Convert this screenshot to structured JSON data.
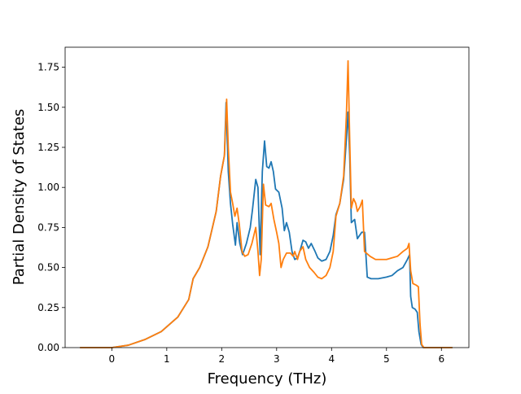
{
  "chart_data": {
    "type": "line",
    "title": "",
    "xlabel": "Frequency (THz)",
    "ylabel": "Partial Density of States",
    "xlim": [
      -0.85,
      6.5
    ],
    "ylim": [
      0,
      1.875
    ],
    "xticks": [
      0,
      1,
      2,
      3,
      4,
      5,
      6
    ],
    "yticks": [
      0.0,
      0.25,
      0.5,
      0.75,
      1.0,
      1.25,
      1.5,
      1.75
    ],
    "ytick_labels": [
      "0.00",
      "0.25",
      "0.50",
      "0.75",
      "1.00",
      "1.25",
      "1.50",
      "1.75"
    ],
    "grid": false,
    "legend": "none",
    "series": [
      {
        "color": "#1f77b4",
        "points": [
          [
            -0.58,
            0.0
          ],
          [
            0.0,
            0.0
          ],
          [
            0.3,
            0.015
          ],
          [
            0.6,
            0.05
          ],
          [
            0.9,
            0.1
          ],
          [
            1.2,
            0.19
          ],
          [
            1.4,
            0.3
          ],
          [
            1.48,
            0.43
          ],
          [
            1.6,
            0.5
          ],
          [
            1.75,
            0.63
          ],
          [
            1.9,
            0.85
          ],
          [
            1.98,
            1.07
          ],
          [
            2.05,
            1.2
          ],
          [
            2.08,
            1.53
          ],
          [
            2.12,
            1.1
          ],
          [
            2.16,
            0.9
          ],
          [
            2.2,
            0.77
          ],
          [
            2.25,
            0.64
          ],
          [
            2.28,
            0.78
          ],
          [
            2.33,
            0.65
          ],
          [
            2.38,
            0.58
          ],
          [
            2.45,
            0.65
          ],
          [
            2.52,
            0.75
          ],
          [
            2.56,
            0.86
          ],
          [
            2.62,
            1.05
          ],
          [
            2.66,
            1.0
          ],
          [
            2.7,
            0.58
          ],
          [
            2.74,
            1.1
          ],
          [
            2.78,
            1.29
          ],
          [
            2.82,
            1.13
          ],
          [
            2.86,
            1.12
          ],
          [
            2.9,
            1.16
          ],
          [
            2.94,
            1.1
          ],
          [
            2.98,
            0.99
          ],
          [
            3.04,
            0.97
          ],
          [
            3.1,
            0.87
          ],
          [
            3.14,
            0.73
          ],
          [
            3.18,
            0.78
          ],
          [
            3.23,
            0.72
          ],
          [
            3.28,
            0.6
          ],
          [
            3.33,
            0.55
          ],
          [
            3.38,
            0.56
          ],
          [
            3.43,
            0.61
          ],
          [
            3.48,
            0.67
          ],
          [
            3.53,
            0.66
          ],
          [
            3.58,
            0.62
          ],
          [
            3.63,
            0.65
          ],
          [
            3.7,
            0.6
          ],
          [
            3.75,
            0.56
          ],
          [
            3.82,
            0.54
          ],
          [
            3.9,
            0.55
          ],
          [
            3.97,
            0.6
          ],
          [
            4.03,
            0.7
          ],
          [
            4.08,
            0.83
          ],
          [
            4.15,
            0.9
          ],
          [
            4.22,
            1.05
          ],
          [
            4.27,
            1.3
          ],
          [
            4.3,
            1.47
          ],
          [
            4.33,
            1.2
          ],
          [
            4.36,
            0.78
          ],
          [
            4.42,
            0.8
          ],
          [
            4.47,
            0.68
          ],
          [
            4.55,
            0.72
          ],
          [
            4.6,
            0.72
          ],
          [
            4.65,
            0.44
          ],
          [
            4.72,
            0.43
          ],
          [
            4.85,
            0.43
          ],
          [
            5.0,
            0.44
          ],
          [
            5.1,
            0.45
          ],
          [
            5.2,
            0.48
          ],
          [
            5.3,
            0.5
          ],
          [
            5.38,
            0.55
          ],
          [
            5.42,
            0.58
          ],
          [
            5.44,
            0.32
          ],
          [
            5.47,
            0.25
          ],
          [
            5.52,
            0.24
          ],
          [
            5.56,
            0.22
          ],
          [
            5.59,
            0.1
          ],
          [
            5.63,
            0.02
          ],
          [
            5.67,
            0.0
          ],
          [
            6.2,
            0.0
          ]
        ]
      },
      {
        "color": "#ff7f0e",
        "points": [
          [
            -0.58,
            0.0
          ],
          [
            0.0,
            0.0
          ],
          [
            0.3,
            0.015
          ],
          [
            0.6,
            0.05
          ],
          [
            0.9,
            0.1
          ],
          [
            1.2,
            0.19
          ],
          [
            1.4,
            0.3
          ],
          [
            1.48,
            0.43
          ],
          [
            1.6,
            0.5
          ],
          [
            1.75,
            0.63
          ],
          [
            1.9,
            0.85
          ],
          [
            1.98,
            1.07
          ],
          [
            2.05,
            1.2
          ],
          [
            2.09,
            1.55
          ],
          [
            2.12,
            1.25
          ],
          [
            2.16,
            0.97
          ],
          [
            2.2,
            0.9
          ],
          [
            2.24,
            0.82
          ],
          [
            2.28,
            0.87
          ],
          [
            2.32,
            0.77
          ],
          [
            2.37,
            0.6
          ],
          [
            2.42,
            0.57
          ],
          [
            2.48,
            0.58
          ],
          [
            2.55,
            0.65
          ],
          [
            2.62,
            0.75
          ],
          [
            2.66,
            0.6
          ],
          [
            2.69,
            0.45
          ],
          [
            2.72,
            0.55
          ],
          [
            2.76,
            1.02
          ],
          [
            2.8,
            0.89
          ],
          [
            2.86,
            0.88
          ],
          [
            2.9,
            0.9
          ],
          [
            2.95,
            0.8
          ],
          [
            3.0,
            0.72
          ],
          [
            3.04,
            0.65
          ],
          [
            3.08,
            0.5
          ],
          [
            3.12,
            0.55
          ],
          [
            3.18,
            0.59
          ],
          [
            3.25,
            0.59
          ],
          [
            3.3,
            0.57
          ],
          [
            3.33,
            0.6
          ],
          [
            3.38,
            0.55
          ],
          [
            3.42,
            0.6
          ],
          [
            3.48,
            0.63
          ],
          [
            3.53,
            0.55
          ],
          [
            3.6,
            0.5
          ],
          [
            3.68,
            0.47
          ],
          [
            3.75,
            0.44
          ],
          [
            3.82,
            0.43
          ],
          [
            3.9,
            0.45
          ],
          [
            3.97,
            0.5
          ],
          [
            4.03,
            0.6
          ],
          [
            4.08,
            0.82
          ],
          [
            4.15,
            0.9
          ],
          [
            4.22,
            1.07
          ],
          [
            4.27,
            1.45
          ],
          [
            4.3,
            1.79
          ],
          [
            4.33,
            1.3
          ],
          [
            4.36,
            0.87
          ],
          [
            4.4,
            0.93
          ],
          [
            4.44,
            0.9
          ],
          [
            4.47,
            0.85
          ],
          [
            4.52,
            0.88
          ],
          [
            4.56,
            0.92
          ],
          [
            4.6,
            0.6
          ],
          [
            4.7,
            0.57
          ],
          [
            4.8,
            0.55
          ],
          [
            5.0,
            0.55
          ],
          [
            5.1,
            0.56
          ],
          [
            5.2,
            0.57
          ],
          [
            5.3,
            0.6
          ],
          [
            5.38,
            0.62
          ],
          [
            5.41,
            0.65
          ],
          [
            5.44,
            0.48
          ],
          [
            5.48,
            0.4
          ],
          [
            5.54,
            0.39
          ],
          [
            5.58,
            0.38
          ],
          [
            5.61,
            0.15
          ],
          [
            5.64,
            0.02
          ],
          [
            5.68,
            0.0
          ],
          [
            6.2,
            0.0
          ]
        ]
      }
    ]
  }
}
